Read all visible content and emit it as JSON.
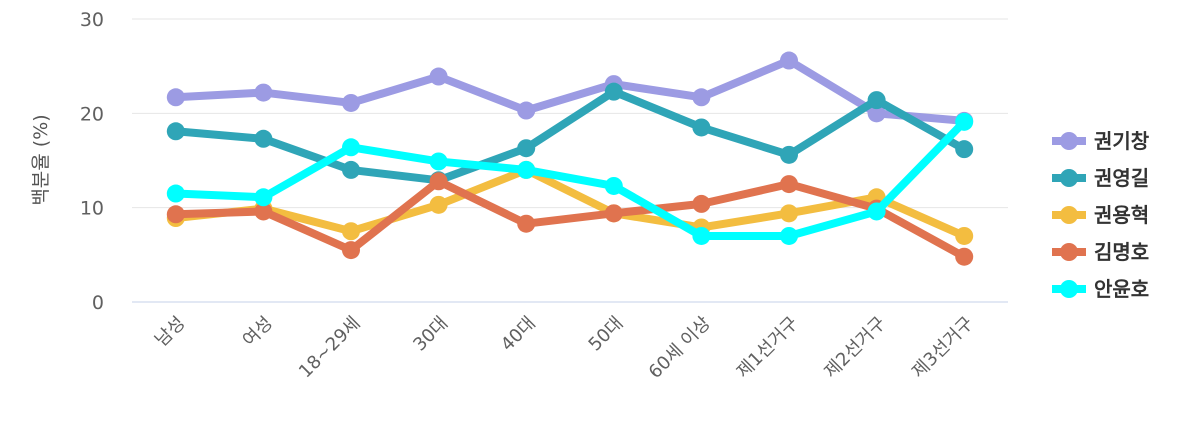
{
  "chart_data": {
    "type": "line",
    "categories": [
      "남성",
      "여성",
      "18~29세",
      "30대",
      "40대",
      "50대",
      "60세 이상",
      "제1선거구",
      "제2선거구",
      "제3선거구"
    ],
    "series": [
      {
        "name": "권기창",
        "color": "#9c9be3",
        "values": [
          21.7,
          22.2,
          21.1,
          23.9,
          20.3,
          23.1,
          21.7,
          25.6,
          20.0,
          19.2
        ]
      },
      {
        "name": "권영길",
        "color": "#2fa5b7",
        "values": [
          18.1,
          17.3,
          14.0,
          12.9,
          16.3,
          22.3,
          18.5,
          15.6,
          21.4,
          16.2
        ]
      },
      {
        "name": "권용혁",
        "color": "#f3bd40",
        "values": [
          8.9,
          9.9,
          7.5,
          10.3,
          14.0,
          9.4,
          7.9,
          9.4,
          11.1,
          7.0
        ]
      },
      {
        "name": "김명호",
        "color": "#e0734f",
        "values": [
          9.3,
          9.6,
          5.5,
          12.8,
          8.3,
          9.4,
          10.4,
          12.5,
          9.9,
          4.8
        ]
      },
      {
        "name": "안윤호",
        "color": "#00ffff",
        "values": [
          11.5,
          11.1,
          16.4,
          14.9,
          14.0,
          12.3,
          7.0,
          7.0,
          9.6,
          19.1
        ]
      }
    ],
    "ylabel": "백분율 (%)",
    "xlabel": "",
    "ylim": [
      0,
      30
    ],
    "yticks": [
      0,
      10,
      20,
      30
    ],
    "grid": true,
    "legend": "right"
  }
}
